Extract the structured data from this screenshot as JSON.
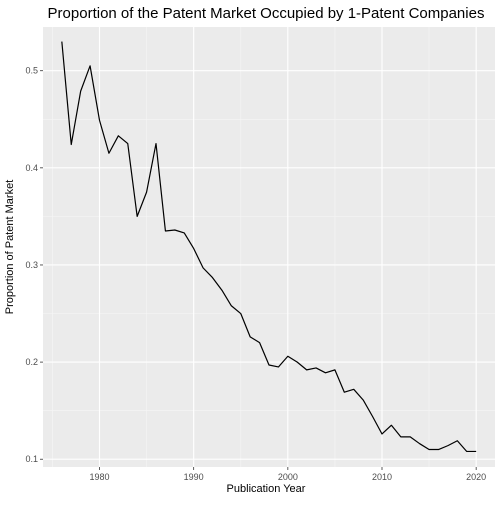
{
  "chart_data": {
    "type": "line",
    "title": "Proportion of the Patent Market Occupied by 1-Patent Companies",
    "xlabel": "Publication Year",
    "ylabel": "Proportion of Patent Market",
    "xlim": [
      1974,
      2022
    ],
    "ylim": [
      0.092,
      0.545
    ],
    "x_ticks": [
      1980,
      1990,
      2000,
      2010,
      2020
    ],
    "y_ticks": [
      0.1,
      0.2,
      0.3,
      0.4,
      0.5
    ],
    "x_tick_labels": [
      "1980",
      "1990",
      "2000",
      "2010",
      "2020"
    ],
    "y_tick_labels": [
      "0.1",
      "0.2",
      "0.3",
      "0.4",
      "0.5"
    ],
    "grid": true,
    "legend": "none",
    "colors": {
      "panel_background": "#ebebeb",
      "grid_major": "#ffffff",
      "grid_minor": "#f5f5f5",
      "line": "#000000",
      "axis_text": "#4d4d4d",
      "title": "#000000"
    },
    "series": [
      {
        "x": [
          1976,
          1977,
          1978,
          1979,
          1980,
          1981,
          1982,
          1983,
          1984,
          1985,
          1986,
          1987,
          1988,
          1989,
          1990,
          1991,
          1992,
          1993,
          1994,
          1995,
          1996,
          1997,
          1998,
          1999,
          2000,
          2001,
          2002,
          2003,
          2004,
          2005,
          2006,
          2007,
          2008,
          2009,
          2010,
          2011,
          2012,
          2013,
          2014,
          2015,
          2016,
          2017,
          2018,
          2019,
          2020
        ],
        "values": [
          0.53,
          0.424,
          0.479,
          0.505,
          0.449,
          0.415,
          0.433,
          0.425,
          0.35,
          0.375,
          0.425,
          0.335,
          0.336,
          0.333,
          0.317,
          0.297,
          0.287,
          0.274,
          0.258,
          0.25,
          0.226,
          0.22,
          0.197,
          0.195,
          0.206,
          0.2,
          0.192,
          0.194,
          0.189,
          0.192,
          0.169,
          0.172,
          0.161,
          0.144,
          0.126,
          0.135,
          0.123,
          0.123,
          0.116,
          0.11,
          0.11,
          0.114,
          0.119,
          0.108,
          0.108
        ]
      }
    ]
  }
}
